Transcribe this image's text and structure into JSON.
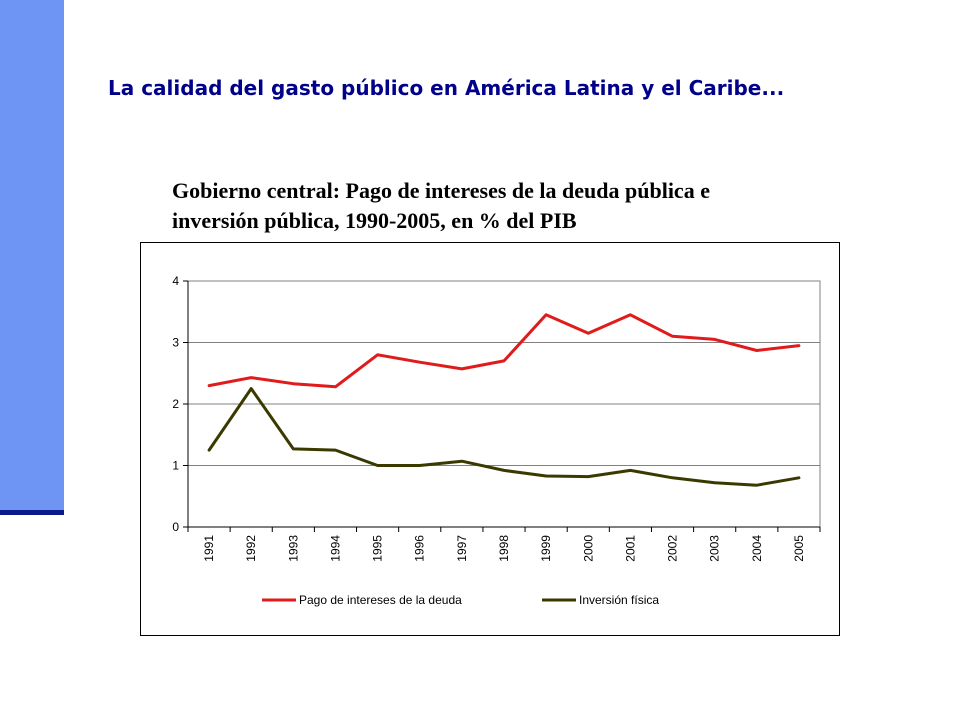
{
  "slide": {
    "heading": "La calidad del gasto público en América Latina y el Caribe...",
    "subtitle_line1": "Gobierno central: Pago de intereses de la deuda pública e",
    "subtitle_line2": "inversión pública, 1990-2005, en % del PIB"
  },
  "colors": {
    "side_bar": "#6e94f4",
    "heading": "#00008b",
    "debt_interest": "#e01b1b",
    "physical_investment": "#3a3a00"
  },
  "chart_data": {
    "type": "line",
    "title": "Gobierno central: Pago de intereses de la deuda pública e inversión pública, 1990-2005, en % del PIB",
    "categories": [
      "1991",
      "1992",
      "1993",
      "1994",
      "1995",
      "1996",
      "1997",
      "1998",
      "1999",
      "2000",
      "2001",
      "2002",
      "2003",
      "2004",
      "2005"
    ],
    "series": [
      {
        "name": "Pago de intereses de la deuda",
        "color": "#e01b1b",
        "values": [
          2.3,
          2.43,
          2.33,
          2.28,
          2.8,
          2.68,
          2.57,
          2.7,
          3.45,
          3.15,
          3.45,
          3.1,
          3.05,
          2.87,
          2.95
        ]
      },
      {
        "name": "Inversión física",
        "color": "#3a3a00",
        "values": [
          1.25,
          2.25,
          1.27,
          1.25,
          1.0,
          1.0,
          1.07,
          0.92,
          0.83,
          0.82,
          0.92,
          0.8,
          0.72,
          0.68,
          0.8
        ]
      }
    ],
    "ylim": [
      0,
      4
    ],
    "yticks": [
      "0",
      "1",
      "2",
      "3",
      "4"
    ],
    "xlabel": "",
    "ylabel": "",
    "grid": "horizontal",
    "legend": "bottom"
  }
}
